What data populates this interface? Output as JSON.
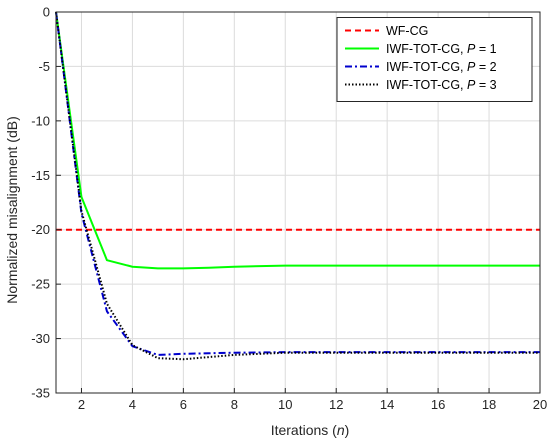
{
  "chart_data": {
    "type": "line",
    "xlabel": "Iterations",
    "xlabel_var": "n",
    "ylabel": "Normalized misalignment (dB)",
    "xlim": [
      1,
      20
    ],
    "ylim": [
      -35,
      0
    ],
    "xticks": [
      2,
      4,
      6,
      8,
      10,
      12,
      14,
      16,
      18,
      20
    ],
    "yticks": [
      0,
      -5,
      -10,
      -15,
      -20,
      -25,
      -30,
      -35
    ],
    "grid": true,
    "legend_position": "top-right",
    "series": [
      {
        "name": "WF-CG",
        "name_plain": "WF-CG",
        "name_var": "",
        "name_suffix": "",
        "color": "#ff0000",
        "dash": "6,4",
        "width": 2,
        "x": [
          1,
          20
        ],
        "values": [
          -20,
          -20
        ]
      },
      {
        "name": "IWF-TOT-CG, P = 1",
        "name_plain": "IWF-TOT-CG, ",
        "name_var": "P",
        "name_suffix": " = 1",
        "color": "#00ff00",
        "dash": "",
        "width": 2,
        "x": [
          1,
          2,
          3,
          4,
          5,
          6,
          7,
          8,
          10,
          12,
          14,
          16,
          18,
          20
        ],
        "values": [
          0,
          -17,
          -22.8,
          -23.4,
          -23.55,
          -23.55,
          -23.5,
          -23.4,
          -23.3,
          -23.3,
          -23.3,
          -23.3,
          -23.3,
          -23.3
        ]
      },
      {
        "name": "IWF-TOT-CG, P = 2",
        "name_plain": "IWF-TOT-CG, ",
        "name_var": "P",
        "name_suffix": " = 2",
        "color": "#0000cd",
        "dash": "7,3,2,3",
        "width": 2,
        "x": [
          1,
          2,
          3,
          4,
          5,
          6,
          7,
          8,
          10,
          12,
          14,
          16,
          18,
          20
        ],
        "values": [
          0,
          -18.5,
          -27.5,
          -30.7,
          -31.5,
          -31.4,
          -31.35,
          -31.3,
          -31.25,
          -31.25,
          -31.25,
          -31.25,
          -31.25,
          -31.25
        ]
      },
      {
        "name": "IWF-TOT-CG, P = 3",
        "name_plain": "IWF-TOT-CG, ",
        "name_var": "P",
        "name_suffix": " = 3",
        "color": "#000000",
        "dash": "1.5,2",
        "width": 2,
        "x": [
          1,
          2,
          3,
          4,
          5,
          6,
          7,
          8,
          10,
          12,
          14,
          16,
          18,
          20
        ],
        "values": [
          0,
          -18.3,
          -26.8,
          -30.6,
          -31.8,
          -31.9,
          -31.7,
          -31.5,
          -31.3,
          -31.3,
          -31.3,
          -31.3,
          -31.3,
          -31.3
        ]
      }
    ]
  }
}
